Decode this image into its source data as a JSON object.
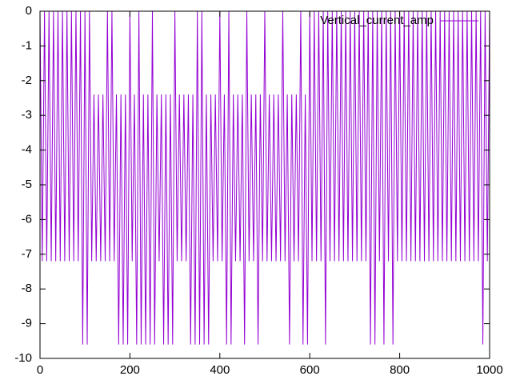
{
  "chart_data": {
    "type": "line",
    "x": [
      0,
      5,
      10,
      15,
      20,
      25,
      30,
      35,
      40,
      45,
      50,
      55,
      60,
      65,
      70,
      75,
      80,
      85,
      90,
      95,
      100,
      105,
      110,
      115,
      120,
      125,
      130,
      135,
      140,
      145,
      150,
      155,
      160,
      165,
      170,
      175,
      180,
      185,
      190,
      195,
      200,
      205,
      210,
      215,
      220,
      225,
      230,
      235,
      240,
      245,
      250,
      255,
      260,
      265,
      270,
      275,
      280,
      285,
      290,
      295,
      300,
      305,
      310,
      315,
      320,
      325,
      330,
      335,
      340,
      345,
      350,
      355,
      360,
      365,
      370,
      375,
      380,
      385,
      390,
      395,
      400,
      405,
      410,
      415,
      420,
      425,
      430,
      435,
      440,
      445,
      450,
      455,
      460,
      465,
      470,
      475,
      480,
      485,
      490,
      495,
      500,
      505,
      510,
      515,
      520,
      525,
      530,
      535,
      540,
      545,
      550,
      555,
      560,
      565,
      570,
      575,
      580,
      585,
      590,
      595,
      600,
      605,
      610,
      615,
      620,
      625,
      630,
      635,
      640,
      645,
      650,
      655,
      660,
      665,
      670,
      675,
      680,
      685,
      690,
      695,
      700,
      705,
      710,
      715,
      720,
      725,
      730,
      735,
      740,
      745,
      750,
      755,
      760,
      765,
      770,
      775,
      780,
      785,
      790,
      795,
      800,
      805,
      810,
      815,
      820,
      825,
      830,
      835,
      840,
      845,
      850,
      855,
      860,
      865,
      870,
      875,
      880,
      885,
      890,
      895,
      900,
      905,
      910,
      915,
      920,
      925,
      930,
      935,
      940,
      945,
      950,
      955,
      960,
      965,
      970,
      975,
      980,
      985,
      990,
      995,
      1000
    ],
    "series": [
      {
        "name": "Vertical_current_amp",
        "color": "#9400d3",
        "values": [
          0,
          -7.2,
          0,
          -7.2,
          0,
          -7.2,
          0,
          -7.2,
          0,
          -7.2,
          0,
          -7.2,
          0,
          -7.2,
          0,
          -7.2,
          0,
          -7.2,
          0,
          -9.6,
          0,
          -9.6,
          0,
          -7.2,
          -2.4,
          -7.2,
          -2.4,
          -7.2,
          -2.4,
          -7.2,
          0,
          -7.2,
          0,
          -7.2,
          -2.4,
          -9.6,
          -2.4,
          -9.6,
          -2.4,
          -9.6,
          0,
          -7.2,
          -2.4,
          -9.6,
          0,
          -9.6,
          -2.4,
          -9.6,
          -2.4,
          -9.6,
          0,
          -9.6,
          -2.4,
          -7.2,
          -2.4,
          -9.6,
          -2.4,
          -9.6,
          -2.4,
          -9.6,
          0,
          -7.2,
          -2.4,
          -7.2,
          -2.4,
          -7.2,
          -2.4,
          -9.6,
          -2.4,
          -9.6,
          0,
          -9.6,
          0,
          -9.6,
          -2.4,
          -9.6,
          -2.4,
          -7.2,
          -2.4,
          -7.2,
          0,
          -7.2,
          -2.4,
          -9.6,
          0,
          -9.6,
          -2.4,
          -7.2,
          -2.4,
          -7.2,
          -2.4,
          -9.6,
          0,
          -7.2,
          -2.4,
          -7.2,
          -2.4,
          -9.6,
          -2.4,
          -7.2,
          0,
          -7.2,
          -2.4,
          -7.2,
          -2.4,
          -7.2,
          -2.4,
          -7.2,
          0,
          -7.2,
          -2.4,
          -9.6,
          -2.4,
          -7.2,
          -2.4,
          -7.2,
          0,
          -9.6,
          -2.4,
          -9.6,
          0,
          -7.2,
          0,
          -7.2,
          0,
          -7.2,
          0,
          -9.6,
          0,
          -7.2,
          0,
          -7.2,
          0,
          -7.2,
          0,
          -7.2,
          0,
          -7.2,
          0,
          -7.2,
          0,
          -7.2,
          0,
          -7.2,
          0,
          -7.2,
          0,
          -9.6,
          0,
          -9.6,
          0,
          -7.2,
          0,
          -9.6,
          0,
          -7.2,
          0,
          -9.6,
          0,
          -7.2,
          0,
          -7.2,
          0,
          -7.2,
          0,
          -7.2,
          0,
          -7.2,
          0,
          -7.2,
          0,
          -7.2,
          0,
          -7.2,
          0,
          -7.2,
          0,
          -7.2,
          0,
          -7.2,
          0,
          -7.2,
          0,
          -7.2,
          0,
          -7.2,
          0,
          -7.2,
          0,
          -7.2,
          0,
          -7.2,
          0,
          -7.2,
          0,
          -7.2,
          0,
          -9.6,
          0,
          -7.2,
          0
        ]
      }
    ],
    "xlim": [
      0,
      1000
    ],
    "xticks": [
      0,
      200,
      400,
      600,
      800,
      1000
    ],
    "ylim": [
      -10,
      0
    ],
    "yticks": [
      0,
      -1,
      -2,
      -3,
      -4,
      -5,
      -6,
      -7,
      -8,
      -9,
      -10
    ],
    "legend": "upper right"
  }
}
